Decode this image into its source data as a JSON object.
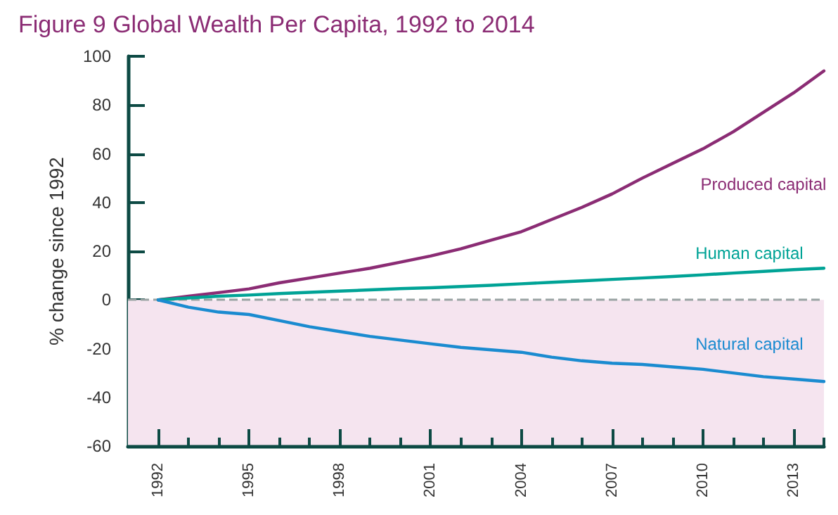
{
  "chart_data": {
    "type": "line",
    "title": "Figure 9 Global Wealth Per Capita, 1992 to 2014",
    "ylabel": "% change since 1992",
    "x": [
      1992,
      1993,
      1994,
      1995,
      1996,
      1997,
      1998,
      1999,
      2000,
      2001,
      2002,
      2003,
      2004,
      2005,
      2006,
      2007,
      2008,
      2009,
      2010,
      2011,
      2012,
      2013,
      2014
    ],
    "series": [
      {
        "name": "Produced capital",
        "color": "#8b2c74",
        "values": [
          0,
          1.5,
          3,
          4.5,
          7,
          9,
          11,
          13,
          15.5,
          18,
          21,
          24.5,
          28,
          33,
          38,
          43.5,
          50,
          56,
          62,
          69,
          77,
          85,
          94
        ]
      },
      {
        "name": "Human capital",
        "color": "#00a396",
        "values": [
          0,
          0.8,
          1.5,
          2,
          2.6,
          3.1,
          3.6,
          4.1,
          4.6,
          5,
          5.5,
          6,
          6.6,
          7.2,
          7.8,
          8.4,
          9,
          9.6,
          10.3,
          11,
          11.7,
          12.4,
          13
        ]
      },
      {
        "name": "Natural capital",
        "color": "#1a8bd0",
        "values": [
          0,
          -3,
          -5,
          -6,
          -8.5,
          -11,
          -13,
          -15,
          -16.5,
          -18,
          -19.5,
          -20.5,
          -21.5,
          -23.5,
          -25,
          -26,
          -26.5,
          -27.5,
          -28.5,
          -30,
          -31.5,
          -32.5,
          -33.5
        ]
      }
    ],
    "xlim": [
      1991,
      2014
    ],
    "xticks": [
      1992,
      {
        "value": 1993,
        "label": null
      },
      {
        "value": 1994,
        "label": null
      },
      1995,
      {
        "value": 1996,
        "label": null
      },
      {
        "value": 1997,
        "label": null
      },
      1998,
      {
        "value": 1999,
        "label": null
      },
      {
        "value": 2000,
        "label": null
      },
      2001,
      {
        "value": 2002,
        "label": null
      },
      {
        "value": 2003,
        "label": null
      },
      2004,
      {
        "value": 2005,
        "label": null
      },
      {
        "value": 2006,
        "label": null
      },
      2007,
      {
        "value": 2008,
        "label": null
      },
      {
        "value": 2009,
        "label": null
      },
      2010,
      {
        "value": 2011,
        "label": null
      },
      {
        "value": 2012,
        "label": null
      },
      2013,
      {
        "value": 2014,
        "label": null
      }
    ],
    "ylim": [
      -60,
      100
    ],
    "yticks": [
      -60,
      -40,
      -20,
      0,
      20,
      40,
      60,
      80,
      100
    ],
    "ref_lines": [
      {
        "axis": "y",
        "value": 0,
        "color": "#9aa3a3",
        "line_style": "dashed"
      }
    ],
    "bands": [
      {
        "axis": "y",
        "from": -60,
        "to": 0,
        "color": "#f5e4ef"
      }
    ],
    "grid": false,
    "legend": false,
    "marker": "none",
    "line_style": "solid"
  }
}
